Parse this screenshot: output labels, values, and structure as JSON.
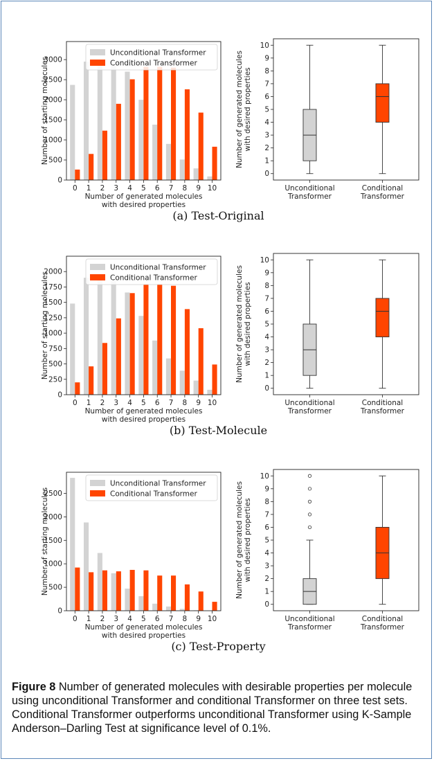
{
  "panels": [
    {
      "subcaption": "(a) Test-Original",
      "bar_chart": {
        "type": "bar",
        "xlabel": [
          "Number of generated molecules",
          "with desired properties"
        ],
        "ylabel": "Number of starting molecules",
        "categories": [
          "0",
          "1",
          "2",
          "3",
          "4",
          "5",
          "6",
          "7",
          "8",
          "9",
          "10"
        ],
        "yticks": [
          0,
          500,
          1000,
          1500,
          2000,
          2500,
          3000
        ],
        "ylim": [
          0,
          3450
        ],
        "legend_placement": "top-right",
        "series": [
          {
            "name": "Unconditional Transformer",
            "color": "#d3d3d3",
            "values": [
              2370,
              2950,
              2900,
              2850,
              2700,
              2000,
              1380,
              900,
              510,
              290,
              90
            ]
          },
          {
            "name": "Conditional Transformer",
            "color": "#ff4500",
            "values": [
              260,
              650,
              1230,
              1900,
              2510,
              2820,
              2820,
              2800,
              2260,
              1680,
              830
            ]
          }
        ]
      },
      "box_chart": {
        "type": "box",
        "ylabel": [
          "Number of generated molecules",
          "with desired properties"
        ],
        "yticks": [
          0,
          1,
          2,
          3,
          4,
          5,
          6,
          7,
          8,
          9,
          10
        ],
        "ylim": [
          -0.5,
          10.5
        ],
        "categories": [
          [
            "Unconditional",
            "Transformer"
          ],
          [
            "Conditional",
            "Transformer"
          ]
        ],
        "boxes": [
          {
            "color": "#d3d3d3",
            "whisker_low": 0,
            "q1": 1,
            "median": 3,
            "q3": 5,
            "whisker_high": 10,
            "outliers": []
          },
          {
            "color": "#ff4500",
            "whisker_low": 0,
            "q1": 4,
            "median": 6,
            "q3": 7,
            "whisker_high": 10,
            "outliers": []
          }
        ]
      }
    },
    {
      "subcaption": "(b) Test-Molecule",
      "bar_chart": {
        "type": "bar",
        "xlabel": [
          "Number of generated molecules",
          "with desired properties"
        ],
        "ylabel": "Number of starting molecules",
        "categories": [
          "0",
          "1",
          "2",
          "3",
          "4",
          "5",
          "6",
          "7",
          "8",
          "9",
          "10"
        ],
        "yticks": [
          0,
          250,
          500,
          750,
          1000,
          1250,
          1500,
          1750,
          2000
        ],
        "ylim": [
          0,
          2250
        ],
        "legend_placement": "top-right",
        "series": [
          {
            "name": "Unconditional Transformer",
            "color": "#d3d3d3",
            "values": [
              1480,
              1900,
              1880,
              1850,
              1660,
              1280,
              880,
              590,
              390,
              230,
              80
            ]
          },
          {
            "name": "Conditional Transformer",
            "color": "#ff4500",
            "values": [
              200,
              460,
              840,
              1240,
              1650,
              1790,
              1790,
              1770,
              1390,
              1080,
              490
            ]
          }
        ]
      },
      "box_chart": {
        "type": "box",
        "ylabel": [
          "Number of generated molecules",
          "with desired properties"
        ],
        "yticks": [
          0,
          1,
          2,
          3,
          4,
          5,
          6,
          7,
          8,
          9,
          10
        ],
        "ylim": [
          -0.5,
          10.5
        ],
        "categories": [
          [
            "Unconditional",
            "Transformer"
          ],
          [
            "Conditional",
            "Transformer"
          ]
        ],
        "boxes": [
          {
            "color": "#d3d3d3",
            "whisker_low": 0,
            "q1": 1,
            "median": 3,
            "q3": 5,
            "whisker_high": 10,
            "outliers": []
          },
          {
            "color": "#ff4500",
            "whisker_low": 0,
            "q1": 4,
            "median": 6,
            "q3": 7,
            "whisker_high": 10,
            "outliers": []
          }
        ]
      }
    },
    {
      "subcaption": "(c) Test-Property",
      "bar_chart": {
        "type": "bar",
        "xlabel": [
          "Number of generated molecules",
          "with desired properties"
        ],
        "ylabel": "Number of starting molecules",
        "categories": [
          "0",
          "1",
          "2",
          "3",
          "4",
          "5",
          "6",
          "7",
          "8",
          "9",
          "10"
        ],
        "yticks": [
          0,
          500,
          1000,
          1500,
          2000,
          2500
        ],
        "ylim": [
          0,
          2950
        ],
        "legend_placement": "top-right",
        "series": [
          {
            "name": "Unconditional Transformer",
            "color": "#d3d3d3",
            "values": [
              2830,
              1880,
              1230,
              800,
              470,
              310,
              150,
              90,
              40,
              10,
              5
            ]
          },
          {
            "name": "Conditional Transformer",
            "color": "#ff4500",
            "values": [
              920,
              820,
              860,
              840,
              870,
              860,
              750,
              750,
              560,
              410,
              190
            ]
          }
        ]
      },
      "box_chart": {
        "type": "box",
        "ylabel": [
          "Number of generated molecules",
          "with desired properties"
        ],
        "yticks": [
          0,
          1,
          2,
          3,
          4,
          5,
          6,
          7,
          8,
          9,
          10
        ],
        "ylim": [
          -0.5,
          10.5
        ],
        "categories": [
          [
            "Unconditional",
            "Transformer"
          ],
          [
            "Conditional",
            "Transformer"
          ]
        ],
        "boxes": [
          {
            "color": "#d3d3d3",
            "whisker_low": 0,
            "q1": 0,
            "median": 1,
            "q3": 2,
            "whisker_high": 5,
            "outliers": [
              6,
              7,
              8,
              9,
              10
            ]
          },
          {
            "color": "#ff4500",
            "whisker_low": 0,
            "q1": 2,
            "median": 4,
            "q3": 6,
            "whisker_high": 10,
            "outliers": []
          }
        ]
      }
    }
  ],
  "caption": {
    "label": "Figure 8",
    "text": " Number of generated molecules with desirable properties per molecule using unconditional Transformer and conditional Transformer on three test sets. Conditional Transformer outperforms unconditional Transformer using K-Sample Anderson–Darling Test at significance level of 0.1%."
  }
}
